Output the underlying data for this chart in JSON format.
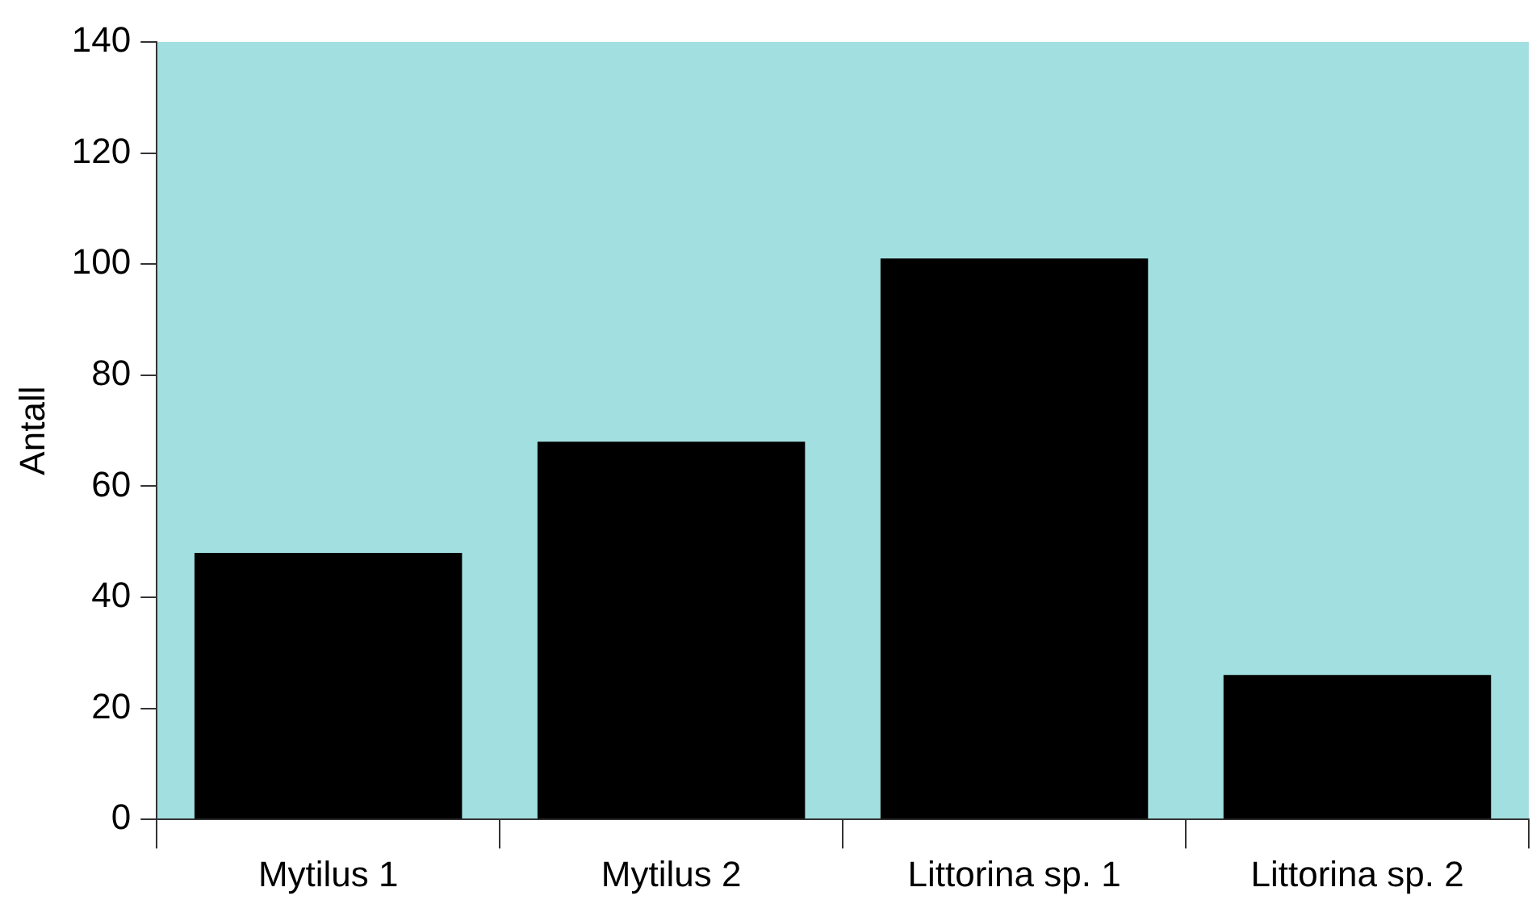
{
  "chart_data": {
    "type": "bar",
    "ylabel": "Antall",
    "categories": [
      "Mytilus 1",
      "Mytilus 2",
      "Littorina sp. 1",
      "Littorina sp. 2"
    ],
    "values": [
      48,
      68,
      101,
      26
    ],
    "color": "#000000",
    "ylim": [
      0,
      140
    ],
    "yticks": [
      0,
      20,
      40,
      60,
      80,
      100,
      120,
      140
    ],
    "grid": false,
    "legend": false
  }
}
